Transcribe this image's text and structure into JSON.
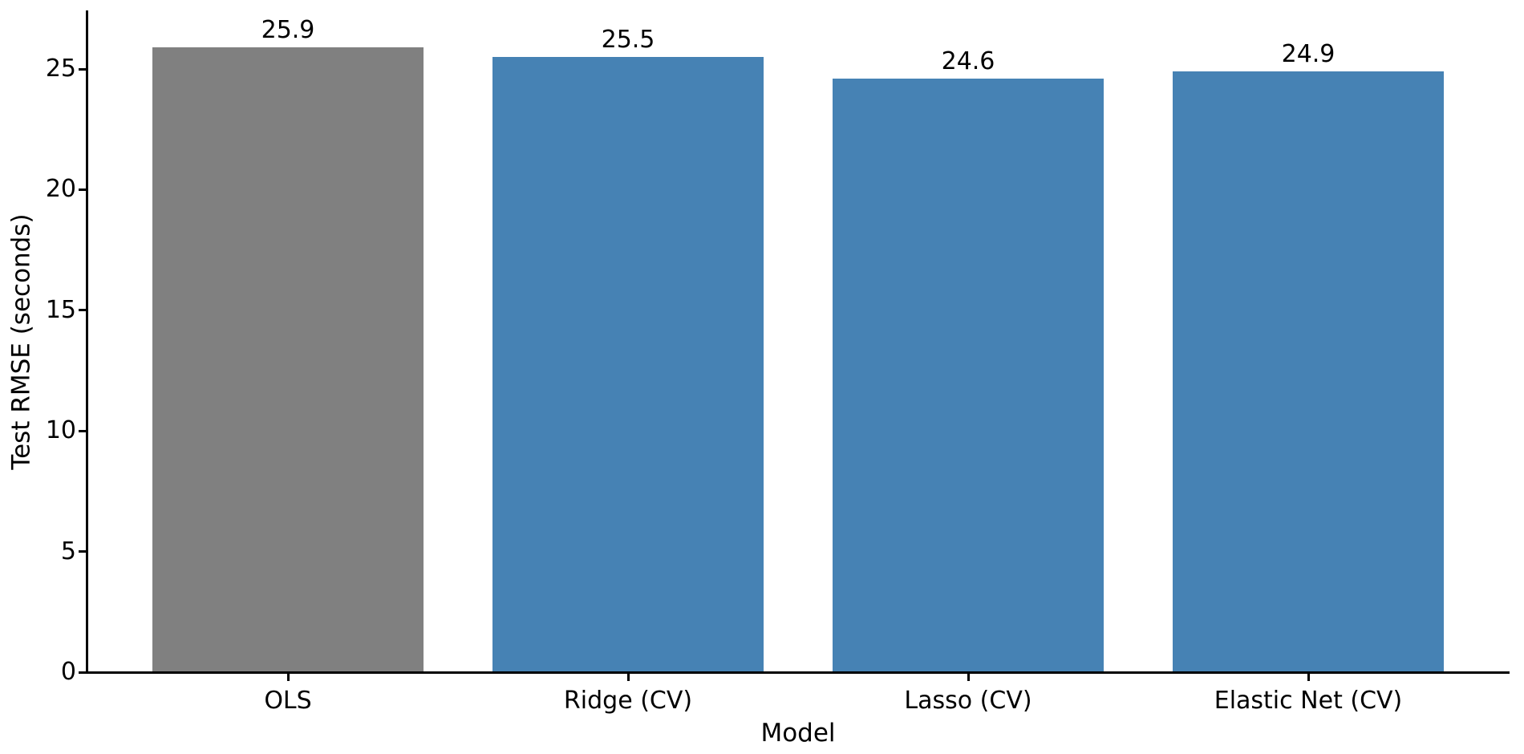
{
  "figure": {
    "background": "#ffffff",
    "axis_color": "#000000",
    "text_color": "#000000"
  },
  "chart_data": {
    "type": "bar",
    "title": "",
    "xlabel": "Model",
    "ylabel": "Test RMSE (seconds)",
    "categories": [
      "OLS",
      "Ridge (CV)",
      "Lasso (CV)",
      "Elastic Net (CV)"
    ],
    "values": [
      25.9,
      25.5,
      24.6,
      24.9
    ],
    "bar_value_labels": [
      "25.9",
      "25.5",
      "24.6",
      "24.9"
    ],
    "bar_colors": [
      "#808080",
      "#4682B4",
      "#4682B4",
      "#4682B4"
    ],
    "yticks": [
      0,
      5,
      10,
      15,
      20,
      25
    ],
    "ytick_labels": [
      "0",
      "5",
      "10",
      "15",
      "20",
      "25"
    ],
    "ylim": [
      0,
      27.4
    ],
    "grid": false,
    "legend": "none"
  }
}
